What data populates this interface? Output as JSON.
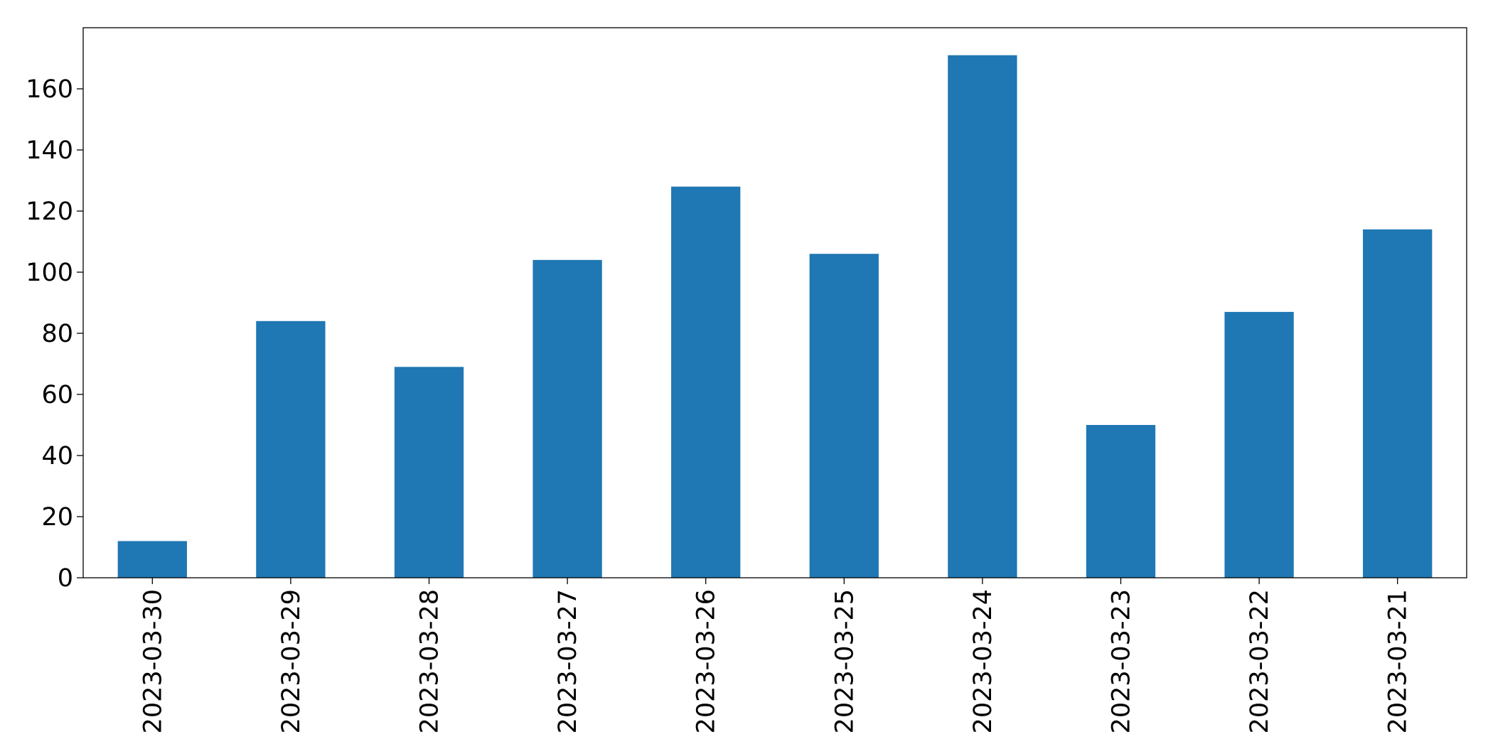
{
  "chart_data": {
    "type": "bar",
    "categories": [
      "2023-03-30",
      "2023-03-29",
      "2023-03-28",
      "2023-03-27",
      "2023-03-26",
      "2023-03-25",
      "2023-03-24",
      "2023-03-23",
      "2023-03-22",
      "2023-03-21"
    ],
    "values": [
      12,
      84,
      69,
      104,
      128,
      106,
      171,
      50,
      87,
      114
    ],
    "color": "#1f77b4",
    "ylim": [
      0,
      180
    ],
    "yticks": [
      0,
      20,
      40,
      60,
      80,
      100,
      120,
      140,
      160
    ],
    "grid": false
  }
}
